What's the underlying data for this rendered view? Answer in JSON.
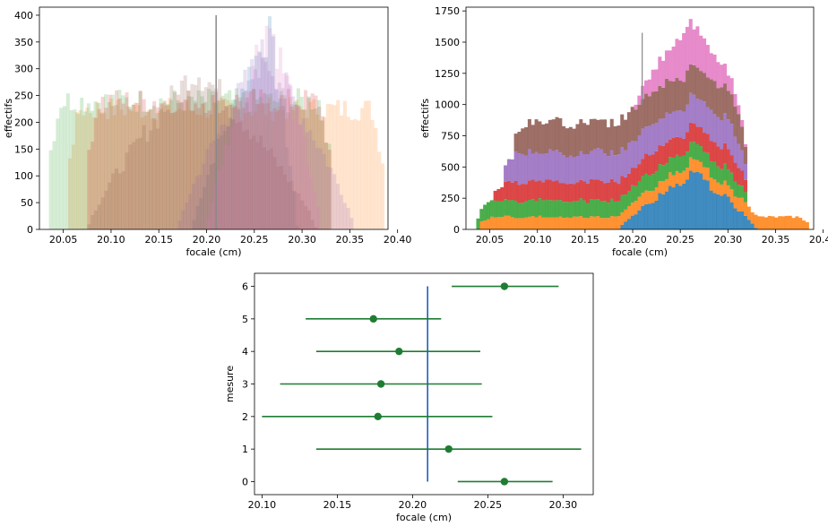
{
  "chart_data": [
    {
      "type": "histogram",
      "layout": "overlaid",
      "xlabel": "focale (cm)",
      "ylabel": "effectifs",
      "xlim": [
        20.025,
        20.39
      ],
      "ylim": [
        0,
        415
      ],
      "xticks": [
        "20.05",
        "20.10",
        "20.15",
        "20.20",
        "20.25",
        "20.30",
        "20.35",
        "20.40"
      ],
      "yticks": [
        "0",
        "50",
        "100",
        "150",
        "200",
        "250",
        "300",
        "350",
        "400"
      ],
      "alpha": 0.2,
      "vline": 20.21,
      "vline_ymax": 400,
      "vline_color": "#888888",
      "series": [
        {
          "color": "#1f77b4",
          "x_min": 20.185,
          "x_max": 20.295,
          "shape": "triangle",
          "peak": 370,
          "peak_x": 20.265
        },
        {
          "color": "#ff7f0e",
          "x_min": 20.055,
          "x_max": 20.385,
          "shape": "flat",
          "peak": 225
        },
        {
          "color": "#2ca02c",
          "x_min": 20.035,
          "x_max": 20.33,
          "shape": "flat",
          "peak": 240
        },
        {
          "color": "#d62728",
          "x_min": 20.075,
          "x_max": 20.33,
          "shape": "flat",
          "peak": 240
        },
        {
          "color": "#9467bd",
          "x_min": 20.17,
          "x_max": 20.355,
          "shape": "triangle",
          "peak": 330,
          "peak_x": 20.26
        },
        {
          "color": "#8c564b",
          "x_min": 20.075,
          "x_max": 20.315,
          "shape": "triangle",
          "peak": 300,
          "peak_x": 20.19
        },
        {
          "color": "#e377c2",
          "x_min": 20.2,
          "x_max": 20.32,
          "shape": "triangle",
          "peak": 390,
          "peak_x": 20.265
        }
      ]
    },
    {
      "type": "histogram",
      "layout": "stacked",
      "xlabel": "focale (cm)",
      "ylabel": "effectifs",
      "xlim": [
        20.025,
        20.39
      ],
      "ylim": [
        0,
        1780
      ],
      "xticks": [
        "20.05",
        "20.10",
        "20.15",
        "20.20",
        "20.25",
        "20.30",
        "20.35",
        "20.40"
      ],
      "yticks": [
        "0",
        "250",
        "500",
        "750",
        "1000",
        "1250",
        "1500",
        "1750"
      ],
      "vline": 20.21,
      "vline_ymax": 1750,
      "vline_color": "#888888",
      "series": [
        {
          "color": "#1f77b4",
          "x_min": 20.185,
          "x_max": 20.33,
          "shape": "triangle",
          "peak": 440,
          "peak_x": 20.265
        },
        {
          "color": "#ff7f0e",
          "x_min": 20.04,
          "x_max": 20.385,
          "shape": "flat",
          "peak": 100
        },
        {
          "color": "#2ca02c",
          "x_min": 20.035,
          "x_max": 20.32,
          "shape": "flat",
          "peak": 130
        },
        {
          "color": "#d62728",
          "x_min": 20.055,
          "x_max": 20.32,
          "shape": "flat",
          "peak": 150
        },
        {
          "color": "#9467bd",
          "x_min": 20.065,
          "x_max": 20.32,
          "shape": "flat",
          "peak": 230
        },
        {
          "color": "#8c564b",
          "x_min": 20.075,
          "x_max": 20.32,
          "shape": "flat",
          "peak": 250
        },
        {
          "color": "#e377c2",
          "x_min": 20.2,
          "x_max": 20.32,
          "shape": "triangle",
          "peak": 360,
          "peak_x": 20.255
        }
      ]
    },
    {
      "type": "errorbar",
      "xlabel": "focale (cm)",
      "ylabel": "mesure",
      "xlim": [
        20.095,
        20.32
      ],
      "ylim": [
        -0.4,
        6.4
      ],
      "xticks": [
        "20.10",
        "20.15",
        "20.20",
        "20.25",
        "20.30"
      ],
      "yticks": [
        "0",
        "1",
        "2",
        "3",
        "4",
        "5",
        "6"
      ],
      "point_color": "#1e7d32",
      "vline": 20.21,
      "vline_color": "#1f5fbf",
      "vline_range": [
        0,
        6
      ],
      "points": [
        {
          "y": 0,
          "x": 20.261,
          "err_low": 20.23,
          "err_high": 20.293
        },
        {
          "y": 1,
          "x": 20.224,
          "err_low": 20.136,
          "err_high": 20.312
        },
        {
          "y": 2,
          "x": 20.177,
          "err_low": 20.1,
          "err_high": 20.253
        },
        {
          "y": 3,
          "x": 20.179,
          "err_low": 20.112,
          "err_high": 20.246
        },
        {
          "y": 4,
          "x": 20.191,
          "err_low": 20.136,
          "err_high": 20.245
        },
        {
          "y": 5,
          "x": 20.174,
          "err_low": 20.129,
          "err_high": 20.219
        },
        {
          "y": 6,
          "x": 20.261,
          "err_low": 20.226,
          "err_high": 20.297
        }
      ]
    }
  ]
}
